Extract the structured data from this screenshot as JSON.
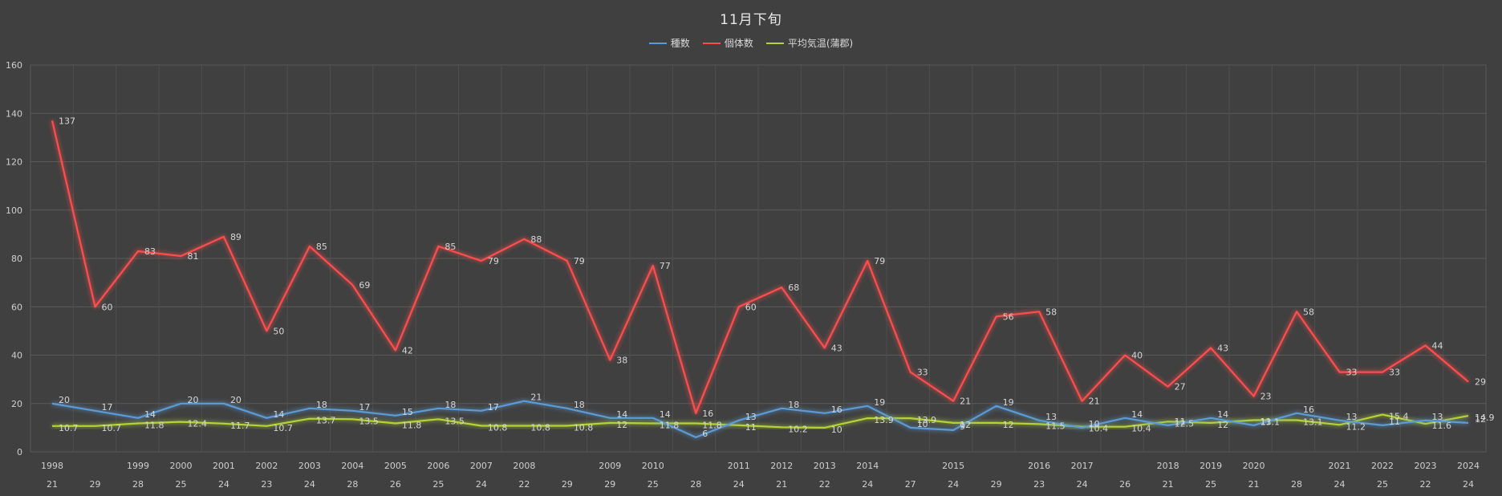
{
  "chart_data": {
    "type": "line",
    "title": "11月下旬",
    "legend_position": "top",
    "grid": true,
    "ylim": [
      0,
      160
    ],
    "y_ticks": [
      "0",
      "20",
      "40",
      "60",
      "80",
      "100",
      "120",
      "140",
      "160"
    ],
    "x_year_labels": [
      "1998",
      "",
      "1999",
      "2000",
      "2001",
      "2002",
      "2003",
      "2004",
      "2005",
      "2006",
      "2007",
      "2008",
      "",
      "2009",
      "2010",
      "",
      "2011",
      "2012",
      "2013",
      "2014",
      "",
      "2015",
      "",
      "2016",
      "2017",
      "",
      "2018",
      "2019",
      "2020",
      "",
      "2021",
      "2022",
      "2023",
      "2024"
    ],
    "x_day_labels": [
      "21",
      "29",
      "28",
      "25",
      "24",
      "23",
      "24",
      "28",
      "26",
      "25",
      "24",
      "22",
      "29",
      "29",
      "25",
      "28",
      "24",
      "21",
      "22",
      "24",
      "27",
      "24",
      "29",
      "23",
      "24",
      "26",
      "21",
      "25",
      "21",
      "28",
      "24",
      "25",
      "22",
      "24"
    ],
    "series": [
      {
        "name": "種数",
        "color": "#5b9bd5",
        "values": [
          20,
          17,
          14,
          20,
          20,
          14,
          18,
          17,
          15,
          18,
          17,
          21,
          18,
          14,
          14,
          6,
          13,
          18,
          16,
          19,
          10,
          9,
          19,
          13,
          10,
          14,
          11,
          14,
          11,
          16,
          13,
          11,
          13,
          12
        ],
        "labels": [
          "20",
          "17",
          "14",
          "20",
          "20",
          "14",
          "18",
          "17",
          "15",
          "18",
          "17",
          "21",
          "18",
          "14",
          "14",
          "6",
          "13",
          "18",
          "16",
          "19",
          "10",
          "9",
          "19",
          "13",
          "10",
          "14",
          "11",
          "14",
          "11",
          "16",
          "13",
          "11",
          "13",
          "12"
        ]
      },
      {
        "name": "個体数",
        "color": "#ff4d4d",
        "values": [
          137,
          60,
          83,
          81,
          89,
          50,
          85,
          69,
          42,
          85,
          79,
          88,
          79,
          38,
          77,
          16,
          60,
          68,
          43,
          79,
          33,
          21,
          56,
          58,
          21,
          40,
          27,
          43,
          23,
          58,
          33,
          33,
          44,
          29
        ],
        "labels": [
          "137",
          "60",
          "83",
          "81",
          "89",
          "50",
          "85",
          "69",
          "42",
          "85",
          "79",
          "88",
          "79",
          "38",
          "77",
          "16",
          "60",
          "68",
          "43",
          "79",
          "33",
          "21",
          "56",
          "58",
          "21",
          "40",
          "27",
          "43",
          "23",
          "58",
          "33",
          "33",
          "44",
          "29"
        ]
      },
      {
        "name": "平均気温(蒲郡)",
        "color": "#b5d334",
        "values": [
          10.7,
          10.7,
          11.8,
          12.4,
          11.7,
          10.7,
          13.7,
          13.5,
          11.8,
          13.5,
          10.8,
          10.8,
          10.8,
          12,
          11.8,
          11.8,
          11,
          10.2,
          10,
          13.9,
          13.9,
          12,
          12,
          11.5,
          10.4,
          10.4,
          12.5,
          12,
          13.1,
          13.1,
          11.2,
          15.4,
          11.6,
          14.9
        ],
        "labels": [
          "10.7",
          "10.7",
          "11.8",
          "12.4",
          "11.7",
          "10.7",
          "13.7",
          "13.5",
          "11.8",
          "13.5",
          "10.8",
          "10.8",
          "10.8",
          "12",
          "11.8",
          "11.8",
          "11",
          "10.2",
          "10",
          "13.9",
          "13.9",
          "12",
          "12",
          "11.5",
          "10.4",
          "10.4",
          "12.5",
          "12",
          "13.1",
          "13.1",
          "11.2",
          "15.4",
          "11.6",
          "14.9"
        ]
      }
    ]
  }
}
